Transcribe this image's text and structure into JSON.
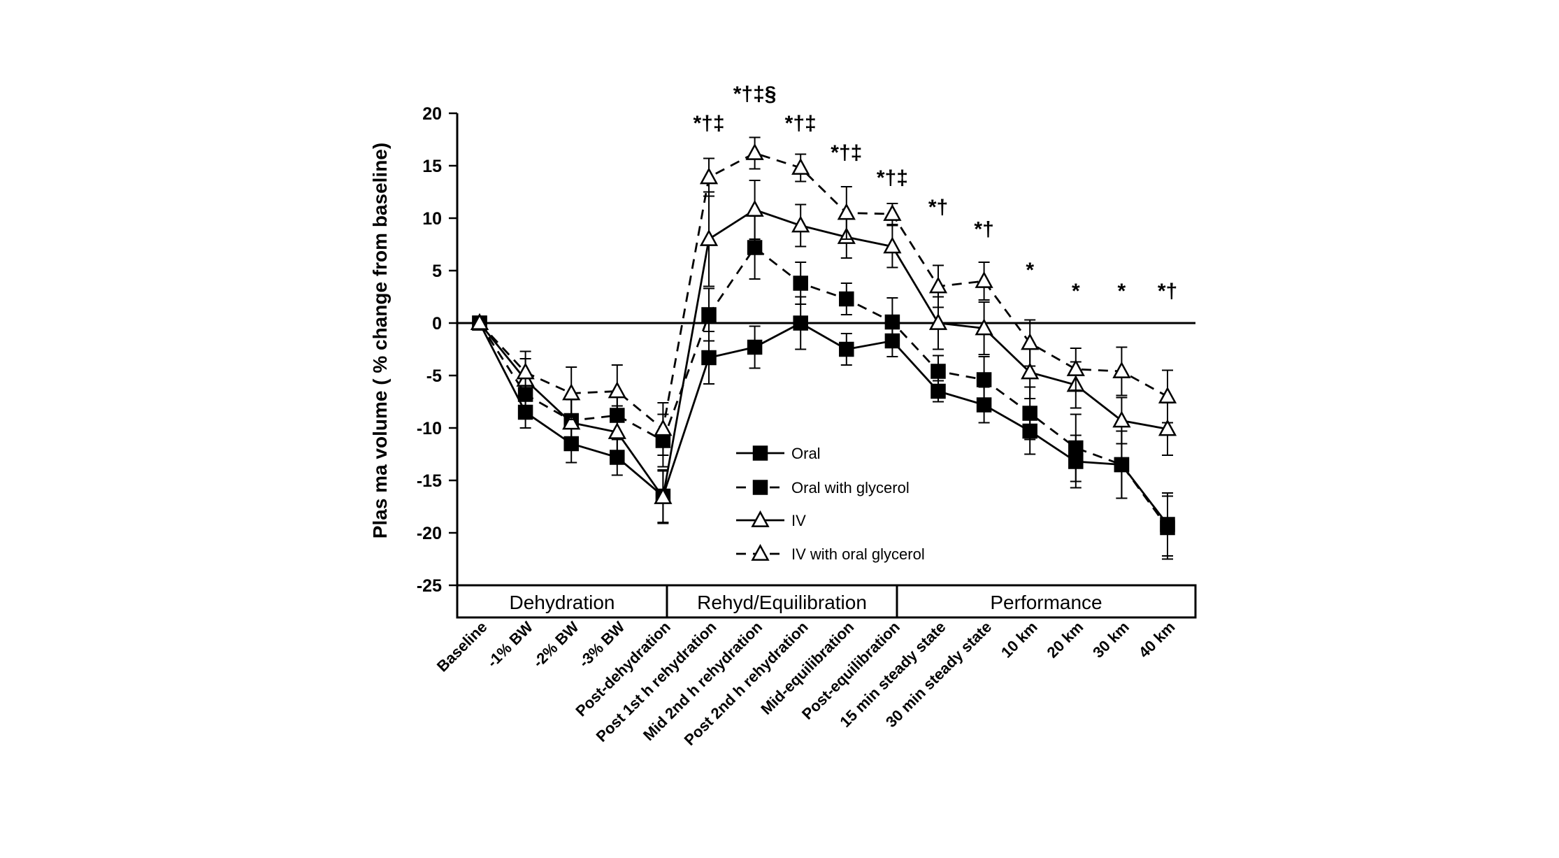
{
  "chart_data": {
    "type": "line",
    "title": "",
    "xlabel": "",
    "ylabel": "Plas ma volume ( % change from baseline)",
    "ylim": [
      -25,
      20
    ],
    "yticks": [
      20,
      15,
      10,
      5,
      0,
      -5,
      -10,
      -15,
      -20,
      -25
    ],
    "grid": false,
    "legend_position": "center",
    "categories": [
      "Baseline",
      "-1% BW",
      "-2% BW",
      "-3% BW",
      "Post-dehydration",
      "Post 1st h rehydration",
      "Mid 2nd h rehydration",
      "Post 2nd h rehydration",
      "Mid-equilibration",
      "Post-equilibration",
      "15 min steady state",
      "30 min steady state",
      "10 km",
      "20 km",
      "30 km",
      "40 km"
    ],
    "phases": [
      {
        "label": "Dehydration",
        "start": 0,
        "end": 4
      },
      {
        "label": "Rehyd/Equilibration",
        "start": 4,
        "end": 9
      },
      {
        "label": "Performance",
        "start": 9,
        "end": 15
      }
    ],
    "series": [
      {
        "name": "Oral",
        "marker": "square-filled",
        "dash": "solid",
        "values": [
          0,
          -8.5,
          -11.5,
          -12.8,
          -16.5,
          -3.3,
          -2.3,
          0,
          -2.5,
          -1.7,
          -6.5,
          -7.8,
          -10.3,
          -13.2,
          -13.5,
          -19.2
        ],
        "errors": [
          0,
          1.5,
          1.8,
          1.7,
          2.5,
          2.5,
          2.0,
          2.5,
          1.5,
          1.5,
          1.0,
          1.7,
          2.2,
          2.5,
          3.2,
          3.0
        ]
      },
      {
        "name": "Oral with glycerol",
        "marker": "square-filled",
        "dash": "dashed",
        "values": [
          0,
          -6.8,
          -9.3,
          -8.8,
          -11.2,
          0.8,
          7.2,
          3.8,
          2.3,
          0.1,
          -4.6,
          -5.4,
          -8.6,
          -11.9,
          -13.5,
          -19.5
        ],
        "errors": [
          0,
          1.8,
          2.0,
          2.0,
          2.5,
          2.5,
          3.0,
          2.0,
          1.5,
          2.3,
          1.5,
          2.2,
          2.5,
          3.2,
          3.2,
          3.0
        ]
      },
      {
        "name": "IV",
        "marker": "triangle-open",
        "dash": "solid",
        "values": [
          0,
          -5.4,
          -9.5,
          -10.4,
          -16.6,
          8.0,
          10.8,
          9.3,
          8.2,
          7.3,
          0,
          -0.5,
          -4.7,
          -5.9,
          -9.3,
          -10.1
        ],
        "errors": [
          0,
          2.0,
          2.3,
          2.5,
          2.5,
          4.5,
          2.8,
          2.0,
          2.0,
          2.0,
          2.5,
          2.5,
          2.5,
          2.2,
          2.2,
          2.5
        ]
      },
      {
        "name": "IV with oral glycerol",
        "marker": "triangle-open",
        "dash": "dashed",
        "values": [
          0,
          -4.7,
          -6.7,
          -6.5,
          -10.1,
          13.9,
          16.2,
          14.8,
          10.5,
          10.4,
          3.5,
          4.0,
          -1.9,
          -4.4,
          -4.6,
          -7.0
        ],
        "errors": [
          0,
          2.0,
          2.5,
          2.5,
          2.5,
          1.8,
          1.5,
          1.3,
          2.5,
          1.0,
          2.0,
          1.8,
          2.2,
          2.0,
          2.3,
          2.5
        ]
      }
    ],
    "significance_labels": [
      {
        "index": 5,
        "text": "*†‡",
        "y": 18.4
      },
      {
        "index": 6,
        "text": "*†‡§",
        "y": 21.2
      },
      {
        "index": 7,
        "text": "*†‡",
        "y": 18.4
      },
      {
        "index": 8,
        "text": "*†‡",
        "y": 15.6
      },
      {
        "index": 9,
        "text": "*†‡",
        "y": 13.2
      },
      {
        "index": 10,
        "text": "*†",
        "y": 10.4
      },
      {
        "index": 11,
        "text": "*†",
        "y": 8.3
      },
      {
        "index": 12,
        "text": "*",
        "y": 4.4
      },
      {
        "index": 13,
        "text": "*",
        "y": 2.4
      },
      {
        "index": 14,
        "text": "*",
        "y": 2.4
      },
      {
        "index": 15,
        "text": "*†",
        "y": 2.4
      }
    ]
  }
}
